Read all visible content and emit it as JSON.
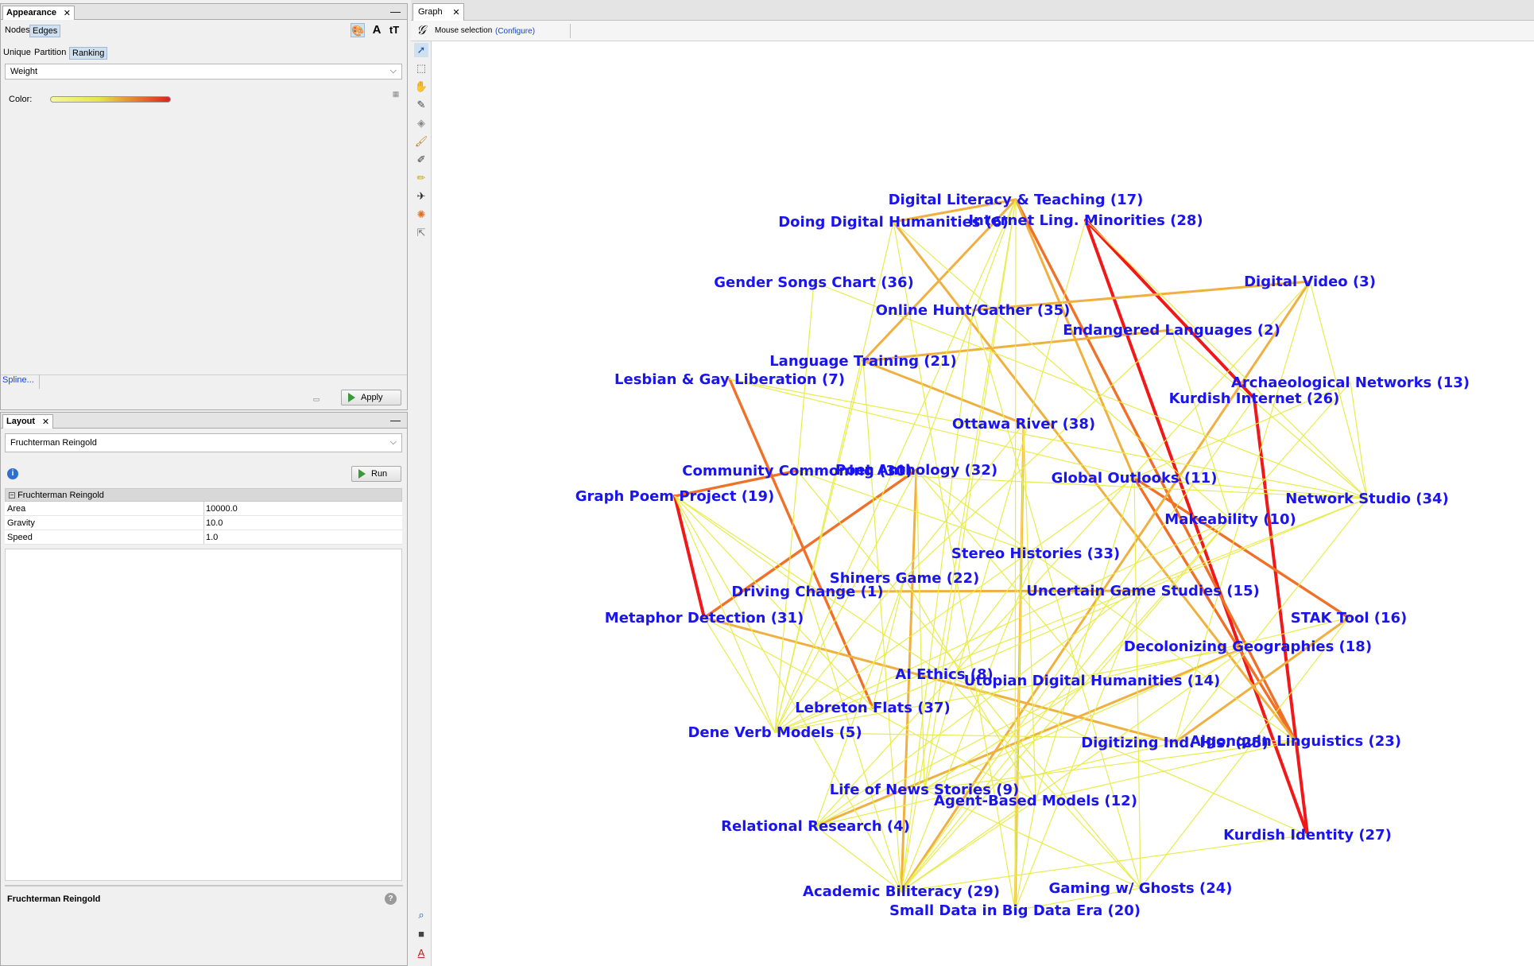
{
  "appearance": {
    "title": "Appearance",
    "element_tabs": [
      "Nodes",
      "Edges"
    ],
    "selected_element_tab": 1,
    "mode_tabs": [
      "Unique",
      "Partition",
      "Ranking"
    ],
    "selected_mode_tab": 2,
    "attribute": "Weight",
    "color_label": "Color:",
    "spline_link": "Spline...",
    "apply_label": "Apply",
    "gradient": [
      "#f6f6a0",
      "#e6e64a",
      "#e02020"
    ]
  },
  "layout": {
    "title": "Layout",
    "algorithm": "Fruchterman Reingold",
    "run_label": "Run",
    "section_header": "Fruchterman Reingold",
    "properties": [
      {
        "key": "Area",
        "value": "10000.0"
      },
      {
        "key": "Gravity",
        "value": "10.0"
      },
      {
        "key": "Speed",
        "value": "1.0"
      }
    ],
    "description_title": "Fruchterman Reingold"
  },
  "graph": {
    "tab_label": "Graph",
    "selection_mode": "Mouse selection",
    "configure_link": "(Configure)",
    "label_color": "#1a14ef",
    "nodes": [
      {
        "id": "n17",
        "label": "Digital Literacy & Teaching (17)"
      },
      {
        "id": "n28",
        "label": "Internet Ling. Minorities (28)"
      },
      {
        "id": "n6",
        "label": "Doing Digital Humanities (6)"
      },
      {
        "id": "n36",
        "label": "Gender Songs Chart (36)"
      },
      {
        "id": "n3",
        "label": "Digital Video (3)"
      },
      {
        "id": "n35",
        "label": "Online Hunt/Gather (35)"
      },
      {
        "id": "n2",
        "label": "Endangered Languages (2)"
      },
      {
        "id": "n21",
        "label": "Language Training (21)"
      },
      {
        "id": "n7",
        "label": "Lesbian & Gay Liberation (7)"
      },
      {
        "id": "n13",
        "label": "Archaeological Networks (13)"
      },
      {
        "id": "n26",
        "label": "Kurdish Internet (26)"
      },
      {
        "id": "n38",
        "label": "Ottawa River (38)"
      },
      {
        "id": "n30",
        "label": "Community Commoning (30)"
      },
      {
        "id": "n32",
        "label": "Poet Anthology (32)"
      },
      {
        "id": "n11",
        "label": "Global Outlooks (11)"
      },
      {
        "id": "n19",
        "label": "Graph Poem Project (19)"
      },
      {
        "id": "n34",
        "label": "Network Studio (34)"
      },
      {
        "id": "n10",
        "label": "Makeability (10)"
      },
      {
        "id": "n33",
        "label": "Stereo Histories (33)"
      },
      {
        "id": "n22",
        "label": "Shiners Game (22)"
      },
      {
        "id": "n1",
        "label": "Driving Change (1)"
      },
      {
        "id": "n15",
        "label": "Uncertain Game Studies (15)"
      },
      {
        "id": "n31",
        "label": "Metaphor Detection (31)"
      },
      {
        "id": "n16",
        "label": "STAK Tool (16)"
      },
      {
        "id": "n18",
        "label": "Decolonizing Geographies (18)"
      },
      {
        "id": "n8",
        "label": "AI Ethics (8)"
      },
      {
        "id": "n14",
        "label": "Utopian Digital Humanities (14)"
      },
      {
        "id": "n37",
        "label": "Lebreton Flats (37)"
      },
      {
        "id": "n5",
        "label": "Dene Verb Models (5)"
      },
      {
        "id": "n25",
        "label": "Digitizing Ind. His. (25)"
      },
      {
        "id": "n23",
        "label": "Algonquin Linguistics (23)"
      },
      {
        "id": "n9",
        "label": "Life of News Stories (9)"
      },
      {
        "id": "n12",
        "label": "Agent-Based Models (12)"
      },
      {
        "id": "n4",
        "label": "Relational Research (4)"
      },
      {
        "id": "n27",
        "label": "Kurdish Identity (27)"
      },
      {
        "id": "n24",
        "label": "Gaming w/ Ghosts (24)"
      },
      {
        "id": "n29",
        "label": "Academic Biliteracy (29)"
      },
      {
        "id": "n20",
        "label": "Small Data in Big Data Era (20)"
      }
    ],
    "edge_colors": {
      "low": "#e8ec4a",
      "mid": "#f0b040",
      "high": "#f07028",
      "max": "#f01818"
    },
    "edges": [
      [
        "n28",
        "n26",
        3
      ],
      [
        "n26",
        "n27",
        3
      ],
      [
        "n28",
        "n27",
        3
      ],
      [
        "n19",
        "n31",
        3
      ],
      [
        "n31",
        "n32",
        2.6
      ],
      [
        "n19",
        "n30",
        2.4
      ],
      [
        "n16",
        "n11",
        2.4
      ],
      [
        "n17",
        "n23",
        2.2
      ],
      [
        "n11",
        "n23",
        2.2
      ],
      [
        "n7",
        "n37",
        2.2
      ],
      [
        "n38",
        "n21",
        2
      ],
      [
        "n17",
        "n6",
        2
      ],
      [
        "n21",
        "n2",
        2
      ],
      [
        "n35",
        "n3",
        1.8
      ],
      [
        "n16",
        "n25",
        1.8
      ],
      [
        "n4",
        "n18",
        1.8
      ],
      [
        "n29",
        "n3",
        1.8
      ],
      [
        "n20",
        "n38",
        1.6
      ],
      [
        "n17",
        "n21",
        1.6
      ],
      [
        "n29",
        "n32",
        1.6
      ],
      [
        "n31",
        "n25",
        1.6
      ],
      [
        "n15",
        "n1",
        1.6
      ],
      [
        "n17",
        "n5",
        1
      ],
      [
        "n17",
        "n29",
        1
      ],
      [
        "n17",
        "n9",
        1
      ],
      [
        "n17",
        "n32",
        1
      ],
      [
        "n17",
        "n11",
        1.6
      ],
      [
        "n6",
        "n23",
        1.6
      ],
      [
        "n2",
        "n34",
        1
      ],
      [
        "n2",
        "n10",
        1
      ],
      [
        "n2",
        "n22",
        1
      ],
      [
        "n3",
        "n34",
        1
      ],
      [
        "n3",
        "n25",
        1
      ],
      [
        "n13",
        "n34",
        1
      ],
      [
        "n13",
        "n11",
        1
      ],
      [
        "n7",
        "n11",
        1
      ],
      [
        "n7",
        "n34",
        1
      ],
      [
        "n30",
        "n33",
        1
      ],
      [
        "n30",
        "n34",
        1
      ],
      [
        "n19",
        "n5",
        1
      ],
      [
        "n19",
        "n8",
        1
      ],
      [
        "n19",
        "n29",
        1
      ],
      [
        "n19",
        "n37",
        1
      ],
      [
        "n19",
        "n1",
        1
      ],
      [
        "n31",
        "n5",
        1
      ],
      [
        "n31",
        "n12",
        1
      ],
      [
        "n32",
        "n9",
        1
      ],
      [
        "n32",
        "n14",
        1
      ],
      [
        "n32",
        "n5",
        1
      ],
      [
        "n11",
        "n5",
        1
      ],
      [
        "n11",
        "n12",
        1
      ],
      [
        "n11",
        "n24",
        1
      ],
      [
        "n11",
        "n34",
        1
      ],
      [
        "n34",
        "n5",
        1
      ],
      [
        "n34",
        "n25",
        1
      ],
      [
        "n34",
        "n15",
        1
      ],
      [
        "n10",
        "n5",
        1
      ],
      [
        "n10",
        "n4",
        1
      ],
      [
        "n10",
        "n14",
        1
      ],
      [
        "n33",
        "n29",
        1
      ],
      [
        "n33",
        "n8",
        1
      ],
      [
        "n22",
        "n12",
        1
      ],
      [
        "n22",
        "n4",
        1
      ],
      [
        "n22",
        "n37",
        1
      ],
      [
        "n1",
        "n29",
        1
      ],
      [
        "n15",
        "n20",
        1
      ],
      [
        "n15",
        "n29",
        1
      ],
      [
        "n15",
        "n37",
        1
      ],
      [
        "n16",
        "n14",
        1
      ],
      [
        "n16",
        "n24",
        1
      ],
      [
        "n18",
        "n5",
        1
      ],
      [
        "n18",
        "n9",
        1
      ],
      [
        "n18",
        "n29",
        1
      ],
      [
        "n8",
        "n24",
        1
      ],
      [
        "n8",
        "n27",
        1
      ],
      [
        "n14",
        "n9",
        1
      ],
      [
        "n14",
        "n4",
        1
      ],
      [
        "n37",
        "n5",
        1
      ],
      [
        "n5",
        "n23",
        1
      ],
      [
        "n25",
        "n4",
        1
      ],
      [
        "n23",
        "n12",
        1
      ],
      [
        "n23",
        "n9",
        1
      ],
      [
        "n9",
        "n24",
        1
      ],
      [
        "n12",
        "n20",
        1
      ],
      [
        "n12",
        "n29",
        1
      ],
      [
        "n4",
        "n29",
        1
      ],
      [
        "n27",
        "n29",
        1
      ],
      [
        "n24",
        "n20",
        1
      ],
      [
        "n20",
        "n38",
        1
      ],
      [
        "n36",
        "n5",
        1
      ],
      [
        "n36",
        "n34",
        1
      ],
      [
        "n21",
        "n29",
        1
      ],
      [
        "n21",
        "n5",
        1
      ],
      [
        "n35",
        "n29",
        1
      ],
      [
        "n35",
        "n24",
        1
      ],
      [
        "n28",
        "n34",
        1
      ],
      [
        "n28",
        "n9",
        1
      ],
      [
        "n26",
        "n29",
        1
      ],
      [
        "n38",
        "n12",
        1
      ],
      [
        "n38",
        "n5",
        1
      ],
      [
        "n6",
        "n10",
        1
      ],
      [
        "n6",
        "n5",
        1
      ],
      [
        "n6",
        "n20",
        1
      ],
      [
        "n13",
        "n29",
        1
      ],
      [
        "n3",
        "n4",
        1
      ],
      [
        "n32",
        "n23",
        1
      ],
      [
        "n30",
        "n24",
        1
      ],
      [
        "n17",
        "n20",
        1
      ]
    ]
  }
}
